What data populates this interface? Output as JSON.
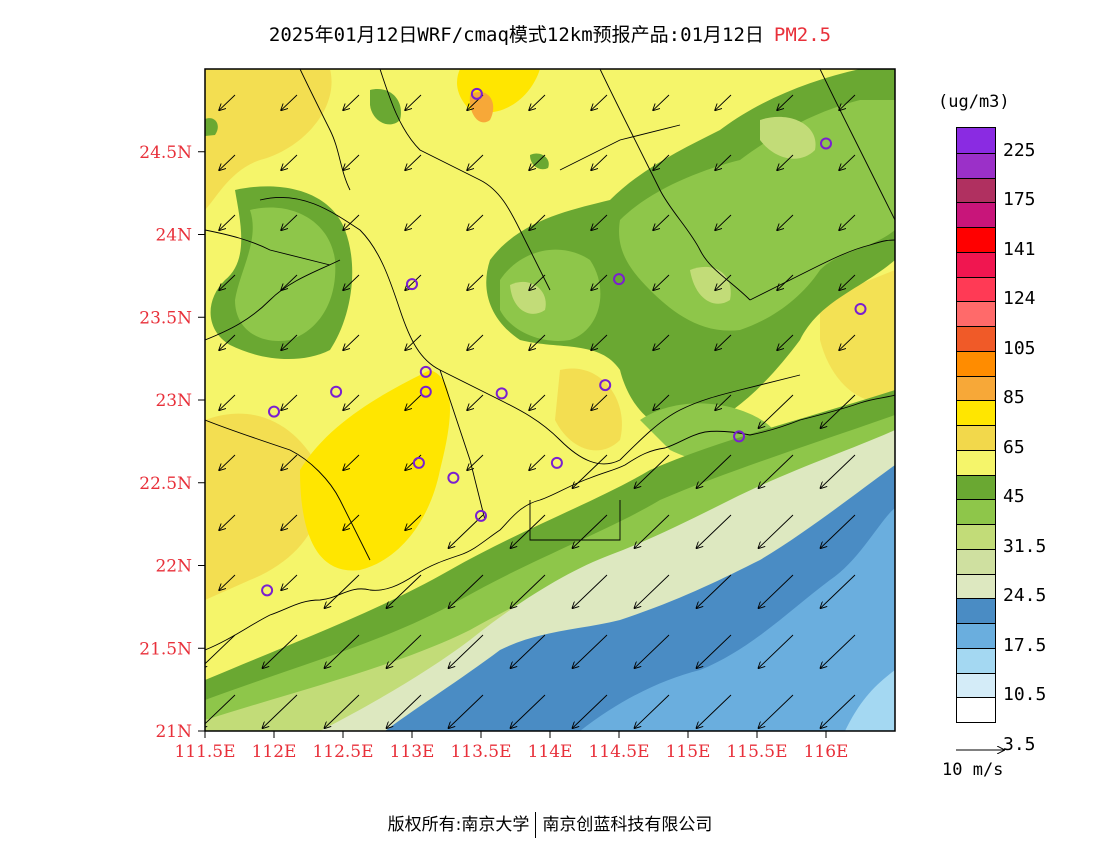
{
  "header": {
    "title": "2025年01月12日WRF/cmaq模式12km预报产品:01月12日",
    "pollutant": "PM2.5"
  },
  "map": {
    "lat_labels": [
      "24.5N",
      "24N",
      "23.5N",
      "23N",
      "22.5N",
      "22N",
      "21.5N",
      "21N"
    ],
    "lon_labels": [
      "111.5E",
      "112E",
      "112.5E",
      "113E",
      "113.5E",
      "114E",
      "114.5E",
      "115E",
      "115.5E",
      "116E"
    ],
    "lat_range": [
      21,
      25
    ],
    "lon_range": [
      111.5,
      116.5
    ],
    "label_color": "#e8303a"
  },
  "legend": {
    "unit": "(ug/m3)",
    "labels": [
      "225",
      "175",
      "141",
      "124",
      "105",
      "85",
      "65",
      "45",
      "31.5",
      "24.5",
      "17.5",
      "10.5",
      "3.5"
    ],
    "colors": [
      "#8a2be2",
      "#9b30c8",
      "#b03060",
      "#c8157a",
      "#ff0000",
      "#f01650",
      "#ff3a55",
      "#ff6a6a",
      "#f05a28",
      "#ff8c00",
      "#f7a838",
      "#ffe600",
      "#f2d84b",
      "#f5f56a",
      "#6aa832",
      "#8ec64a",
      "#c2dc78",
      "#cfe0a0",
      "#dde8c0",
      "#4a8cc4",
      "#6aaede",
      "#a4d8f2",
      "#d4ecf8",
      "#ffffff"
    ]
  },
  "wind": {
    "reference_label": "10 m/s"
  },
  "footer": {
    "left": "版权所有:南京大学",
    "right": "南京创蓝科技有限公司"
  },
  "stations": [
    {
      "lon": 113.47,
      "lat": 24.85
    },
    {
      "lon": 116.0,
      "lat": 24.55
    },
    {
      "lon": 113.0,
      "lat": 23.7
    },
    {
      "lon": 114.5,
      "lat": 23.73
    },
    {
      "lon": 116.25,
      "lat": 23.55
    },
    {
      "lon": 112.45,
      "lat": 23.05
    },
    {
      "lon": 113.1,
      "lat": 23.17
    },
    {
      "lon": 113.1,
      "lat": 23.05
    },
    {
      "lon": 113.65,
      "lat": 23.04
    },
    {
      "lon": 114.4,
      "lat": 23.09
    },
    {
      "lon": 112.0,
      "lat": 22.93
    },
    {
      "lon": 115.37,
      "lat": 22.78
    },
    {
      "lon": 113.05,
      "lat": 22.62
    },
    {
      "lon": 113.3,
      "lat": 22.53
    },
    {
      "lon": 114.05,
      "lat": 22.62
    },
    {
      "lon": 113.5,
      "lat": 22.3
    },
    {
      "lon": 111.95,
      "lat": 21.85
    }
  ]
}
